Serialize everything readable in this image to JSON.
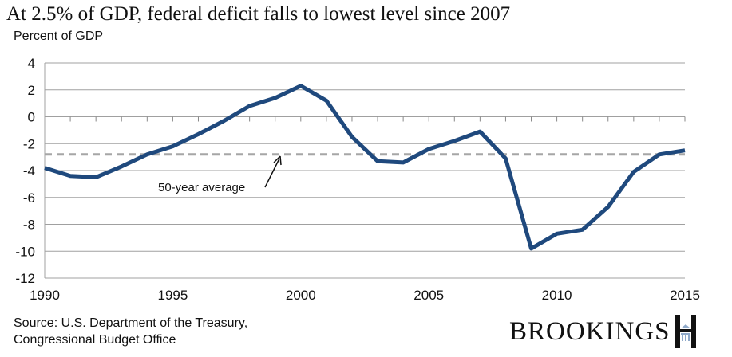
{
  "chart_data": {
    "type": "line",
    "title": "At 2.5% of GDP, federal deficit falls to lowest level since 2007",
    "ylabel": "Percent of GDP",
    "xlabel": "",
    "xlim": [
      1990,
      2015
    ],
    "ylim": [
      -12,
      4
    ],
    "x_ticks": [
      1990,
      1995,
      2000,
      2005,
      2010,
      2015
    ],
    "y_ticks": [
      4,
      2,
      0,
      -2,
      -4,
      -6,
      -8,
      -10,
      -12
    ],
    "grid": true,
    "x": [
      1990,
      1991,
      1992,
      1993,
      1994,
      1995,
      1996,
      1997,
      1998,
      1999,
      2000,
      2001,
      2002,
      2003,
      2004,
      2005,
      2006,
      2007,
      2008,
      2009,
      2010,
      2011,
      2012,
      2013,
      2014,
      2015
    ],
    "series": [
      {
        "values": [
          -3.8,
          -4.4,
          -4.5,
          -3.7,
          -2.8,
          -2.2,
          -1.3,
          -0.3,
          0.8,
          1.4,
          2.3,
          1.2,
          -1.5,
          -3.3,
          -3.4,
          -2.4,
          -1.8,
          -1.1,
          -3.1,
          -9.8,
          -8.7,
          -8.4,
          -6.7,
          -4.1,
          -2.8,
          -2.5
        ],
        "color": "#1f497d"
      }
    ],
    "reference_line": {
      "label": "50-year average",
      "value": -2.8,
      "color": "#a6a6a6"
    }
  },
  "source": {
    "line1": "Source: U.S. Department of the Treasury,",
    "line2": "Congressional Budget Office"
  },
  "logo": {
    "text": "BROOKINGS"
  }
}
